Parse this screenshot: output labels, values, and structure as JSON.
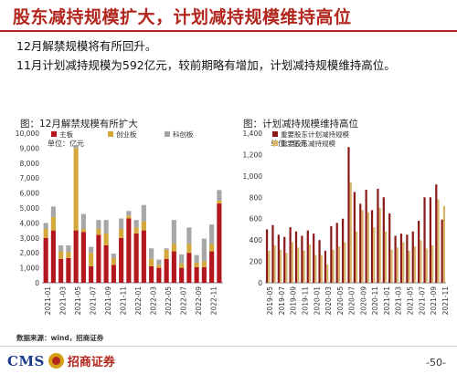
{
  "page": {
    "title": "股东减持规模扩大，计划减持规模维持高位",
    "bullets": [
      "12月解禁规模将有所回升。",
      "11月计划减持规模为592亿元，较前期略有增加，计划减持规模维持高位。"
    ],
    "source": "数据来源：wind，招商证券",
    "logo_cms": "CMS",
    "logo_cn": "招商证券",
    "page_number": "-50-"
  },
  "colors": {
    "brand_red": "#b3261e",
    "main_board": "#b3161c",
    "chinext": "#d4a83a",
    "star": "#a6a6a6",
    "plan_reduce": "#8b1a1a",
    "major_reduce": "#d9b56a"
  },
  "chart_data": [
    {
      "type": "bar",
      "stacked": true,
      "title": "图：12月解禁规模有所扩大",
      "ylabel": "单位：亿元",
      "ylim": [
        0,
        10000
      ],
      "yticks": [
        0,
        1000,
        2000,
        3000,
        4000,
        5000,
        6000,
        7000,
        8000,
        9000,
        10000
      ],
      "xticklabels": [
        "2021-01",
        "2021-03",
        "2021-05",
        "2021-07",
        "2021-09",
        "2021-11",
        "2022-01",
        "2022-03",
        "2022-05",
        "2022-07",
        "2022-09",
        "2022-11"
      ],
      "categories": [
        "2021-01",
        "2021-02",
        "2021-03",
        "2021-04",
        "2021-05",
        "2021-06",
        "2021-07",
        "2021-08",
        "2021-09",
        "2021-10",
        "2021-11",
        "2021-12",
        "2022-01",
        "2022-02",
        "2022-03",
        "2022-04",
        "2022-05",
        "2022-06",
        "2022-07",
        "2022-08",
        "2022-09",
        "2022-10",
        "2022-11",
        "2022-12"
      ],
      "legend_position": "top-left",
      "series": [
        {
          "name": "主板",
          "values": [
            3000,
            3500,
            1600,
            1650,
            3500,
            3400,
            1100,
            3200,
            2500,
            1200,
            3000,
            4300,
            3300,
            3500,
            1100,
            1000,
            1600,
            2100,
            1000,
            2000,
            1050,
            1050,
            2100,
            5300
          ]
        },
        {
          "name": "创业板",
          "values": [
            600,
            900,
            500,
            400,
            5500,
            200,
            900,
            400,
            800,
            450,
            600,
            200,
            400,
            600,
            500,
            200,
            600,
            500,
            300,
            600,
            300,
            400,
            500,
            200
          ]
        },
        {
          "name": "科创板",
          "values": [
            400,
            700,
            400,
            450,
            200,
            1000,
            400,
            600,
            900,
            300,
            700,
            300,
            500,
            1100,
            700,
            350,
            100,
            1600,
            600,
            1100,
            500,
            1500,
            1300,
            700
          ]
        }
      ]
    },
    {
      "type": "bar",
      "title": "图：计划减持规模维持高位",
      "ylabel": "单位：亿元",
      "ylim": [
        0,
        1400
      ],
      "yticks": [
        0,
        200,
        400,
        600,
        800,
        1000,
        1200,
        1400
      ],
      "xticklabels": [
        "2019-05",
        "2019-07",
        "2019-09",
        "2019-11",
        "2020-01",
        "2020-03",
        "2020-05",
        "2020-07",
        "2020-09",
        "2020-11",
        "2021-01",
        "2021-03",
        "2021-05",
        "2021-07",
        "2021-09",
        "2021-11"
      ],
      "categories": [
        "2019-05",
        "2019-06",
        "2019-07",
        "2019-08",
        "2019-09",
        "2019-10",
        "2019-11",
        "2019-12",
        "2020-01",
        "2020-02",
        "2020-03",
        "2020-04",
        "2020-05",
        "2020-06",
        "2020-07",
        "2020-08",
        "2020-09",
        "2020-10",
        "2020-11",
        "2020-12",
        "2021-01",
        "2021-02",
        "2021-03",
        "2021-04",
        "2021-05",
        "2021-06",
        "2021-07",
        "2021-08",
        "2021-09",
        "2021-10",
        "2021-11"
      ],
      "legend_position": "top-left",
      "series": [
        {
          "name": "重要股东计划减持规模",
          "values": [
            500,
            540,
            450,
            430,
            520,
            480,
            440,
            490,
            460,
            400,
            300,
            530,
            560,
            600,
            1270,
            850,
            740,
            870,
            680,
            880,
            800,
            650,
            440,
            460,
            450,
            480,
            580,
            800,
            800,
            920,
            592
          ]
        },
        {
          "name": "重要股东减持规模",
          "values": [
            300,
            350,
            310,
            280,
            380,
            330,
            300,
            360,
            260,
            260,
            170,
            310,
            340,
            380,
            940,
            480,
            680,
            660,
            520,
            700,
            480,
            310,
            330,
            380,
            300,
            340,
            400,
            320,
            350,
            780,
            720
          ]
        }
      ]
    }
  ]
}
